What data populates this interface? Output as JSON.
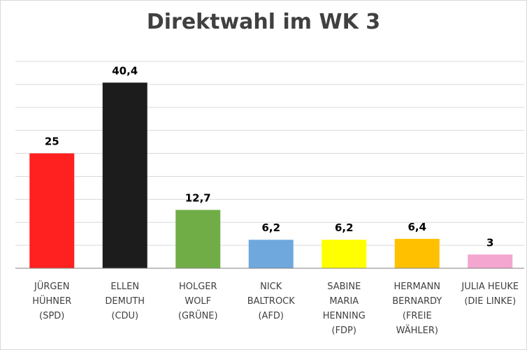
{
  "chart_data": {
    "type": "bar",
    "title": "Direktwahl im WK 3",
    "categories": [
      "JÜRGEN HÜHNER (SPD)",
      "ELLEN DEMUTH (CDU)",
      "HOLGER WOLF (GRÜNE)",
      "NICK BALTROCK (AFD)",
      "SABINE MARIA HENNING (FDP)",
      "HERMANN BERNARDY (FREIE WÄHLER)",
      "JULIA HEUKE (DIE LINKE)"
    ],
    "category_lines": [
      [
        "JÜRGEN",
        "HÜHNER",
        "(SPD)"
      ],
      [
        "ELLEN",
        "DEMUTH",
        "(CDU)"
      ],
      [
        "HOLGER",
        "WOLF",
        "(GRÜNE)"
      ],
      [
        "NICK",
        "BALTROCK",
        "(AFD)"
      ],
      [
        "SABINE",
        "MARIA",
        "HENNING",
        "(FDP)"
      ],
      [
        "HERMANN",
        "BERNARDY",
        "(FREIE",
        "WÄHLER)"
      ],
      [
        "JULIA HEUKE",
        "(DIE LINKE)"
      ]
    ],
    "values": [
      25,
      40.4,
      12.7,
      6.2,
      6.2,
      6.4,
      3
    ],
    "value_labels": [
      "25",
      "40,4",
      "12,7",
      "6,2",
      "6,2",
      "6,4",
      "3"
    ],
    "colors": [
      "#ff2020",
      "#1c1c1c",
      "#70ad47",
      "#6fa8dc",
      "#ffff00",
      "#ffc000",
      "#f4a6d0"
    ],
    "xlabel": "",
    "ylabel": "",
    "ylim": [
      0,
      45
    ],
    "gridline_step": 5,
    "grid": true,
    "axis_color": "#808080",
    "grid_color": "#d9d9d9"
  }
}
